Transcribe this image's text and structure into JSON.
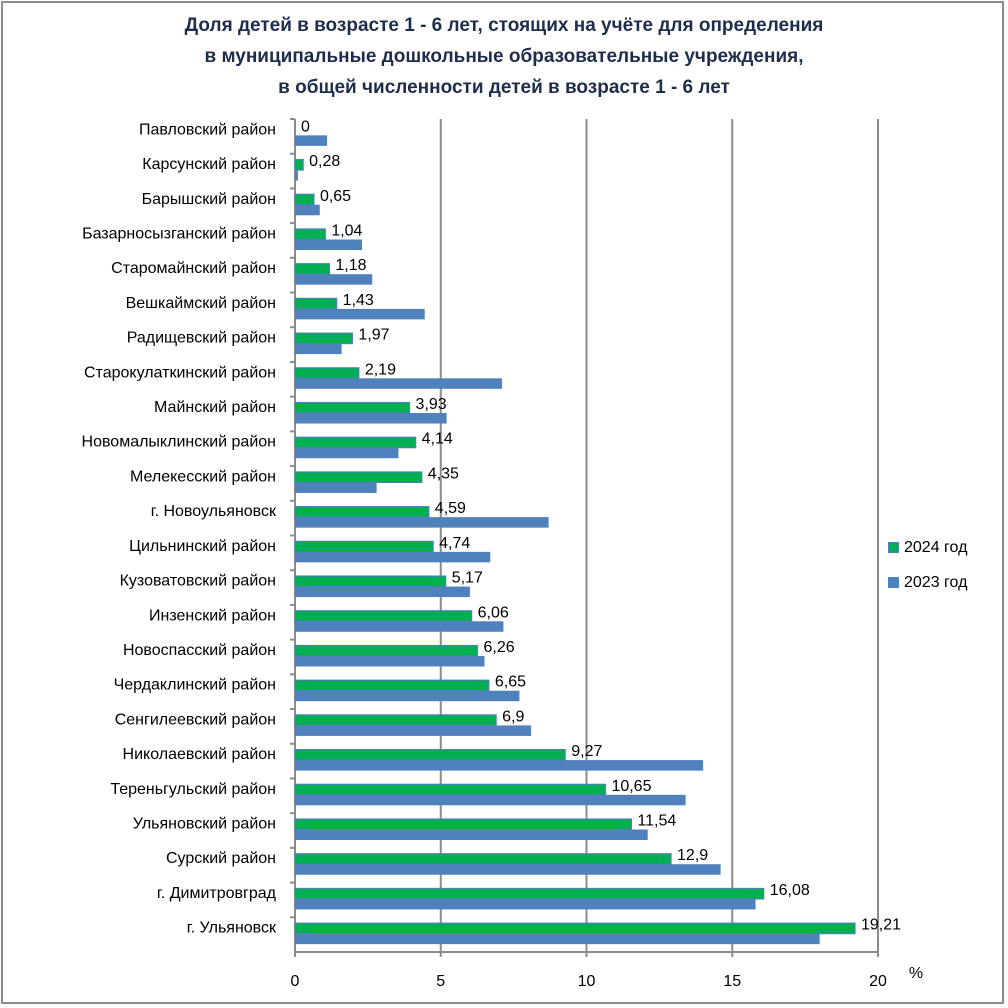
{
  "chart_data": {
    "type": "bar",
    "orientation": "horizontal",
    "title": [
      "Доля детей в возрасте 1 - 6 лет, стоящих на учёте для определения",
      "в муниципальные дошкольные образовательные учреждения,",
      "в общей численности детей в возрасте 1 - 6 лет"
    ],
    "xlabel": "%",
    "ylabel": "",
    "xlim": [
      0,
      20
    ],
    "xticks": [
      "0",
      "5",
      "10",
      "15",
      "20"
    ],
    "xtick_values": [
      0,
      5,
      10,
      15,
      20
    ],
    "grid": "vertical major gridlines",
    "legend_position": "right",
    "categories": [
      "Павловский район",
      "Карсунский район",
      "Барышский район",
      "Базарносызганский район",
      "Старомайнский район",
      "Вешкаймский район",
      "Радищевский район",
      "Старокулаткинский район",
      "Майнский район",
      "Новомалыклинский район",
      "Мелекесский район",
      "г. Новоульяновск",
      "Цильнинский район",
      "Кузоватовский район",
      "Инзенский район",
      "Новоспасский район",
      "Чердаклинский район",
      "Сенгилеевский район",
      "Николаевский район",
      "Тереньгульский район",
      "Ульяновский район",
      "Сурский район",
      "г. Димитровград",
      "г. Ульяновск"
    ],
    "series": [
      {
        "name": "2024 год",
        "color": "#00b050",
        "border": "#4f81bd",
        "values": [
          0,
          0.28,
          0.65,
          1.04,
          1.18,
          1.43,
          1.97,
          2.19,
          3.93,
          4.14,
          4.35,
          4.59,
          4.74,
          5.17,
          6.06,
          6.26,
          6.65,
          6.9,
          9.27,
          10.65,
          11.54,
          12.9,
          16.08,
          19.21
        ],
        "labels": [
          "0",
          "0,28",
          "0,65",
          "1,04",
          "1,18",
          "1,43",
          "1,97",
          "2,19",
          "3,93",
          "4,14",
          "4,35",
          "4,59",
          "4,74",
          "5,17",
          "6,06",
          "6,26",
          "6,65",
          "6,9",
          "9,27",
          "10,65",
          "11,54",
          "12,9",
          "16,08",
          "19,21"
        ]
      },
      {
        "name": "2023 год",
        "color": "#4f81bd",
        "values": [
          1.1,
          0.1,
          0.85,
          2.3,
          2.65,
          4.45,
          1.6,
          7.1,
          5.2,
          3.55,
          2.8,
          8.7,
          6.7,
          6.0,
          7.15,
          6.5,
          7.7,
          8.1,
          14.0,
          13.4,
          12.1,
          14.6,
          15.8,
          18.0
        ]
      }
    ]
  }
}
